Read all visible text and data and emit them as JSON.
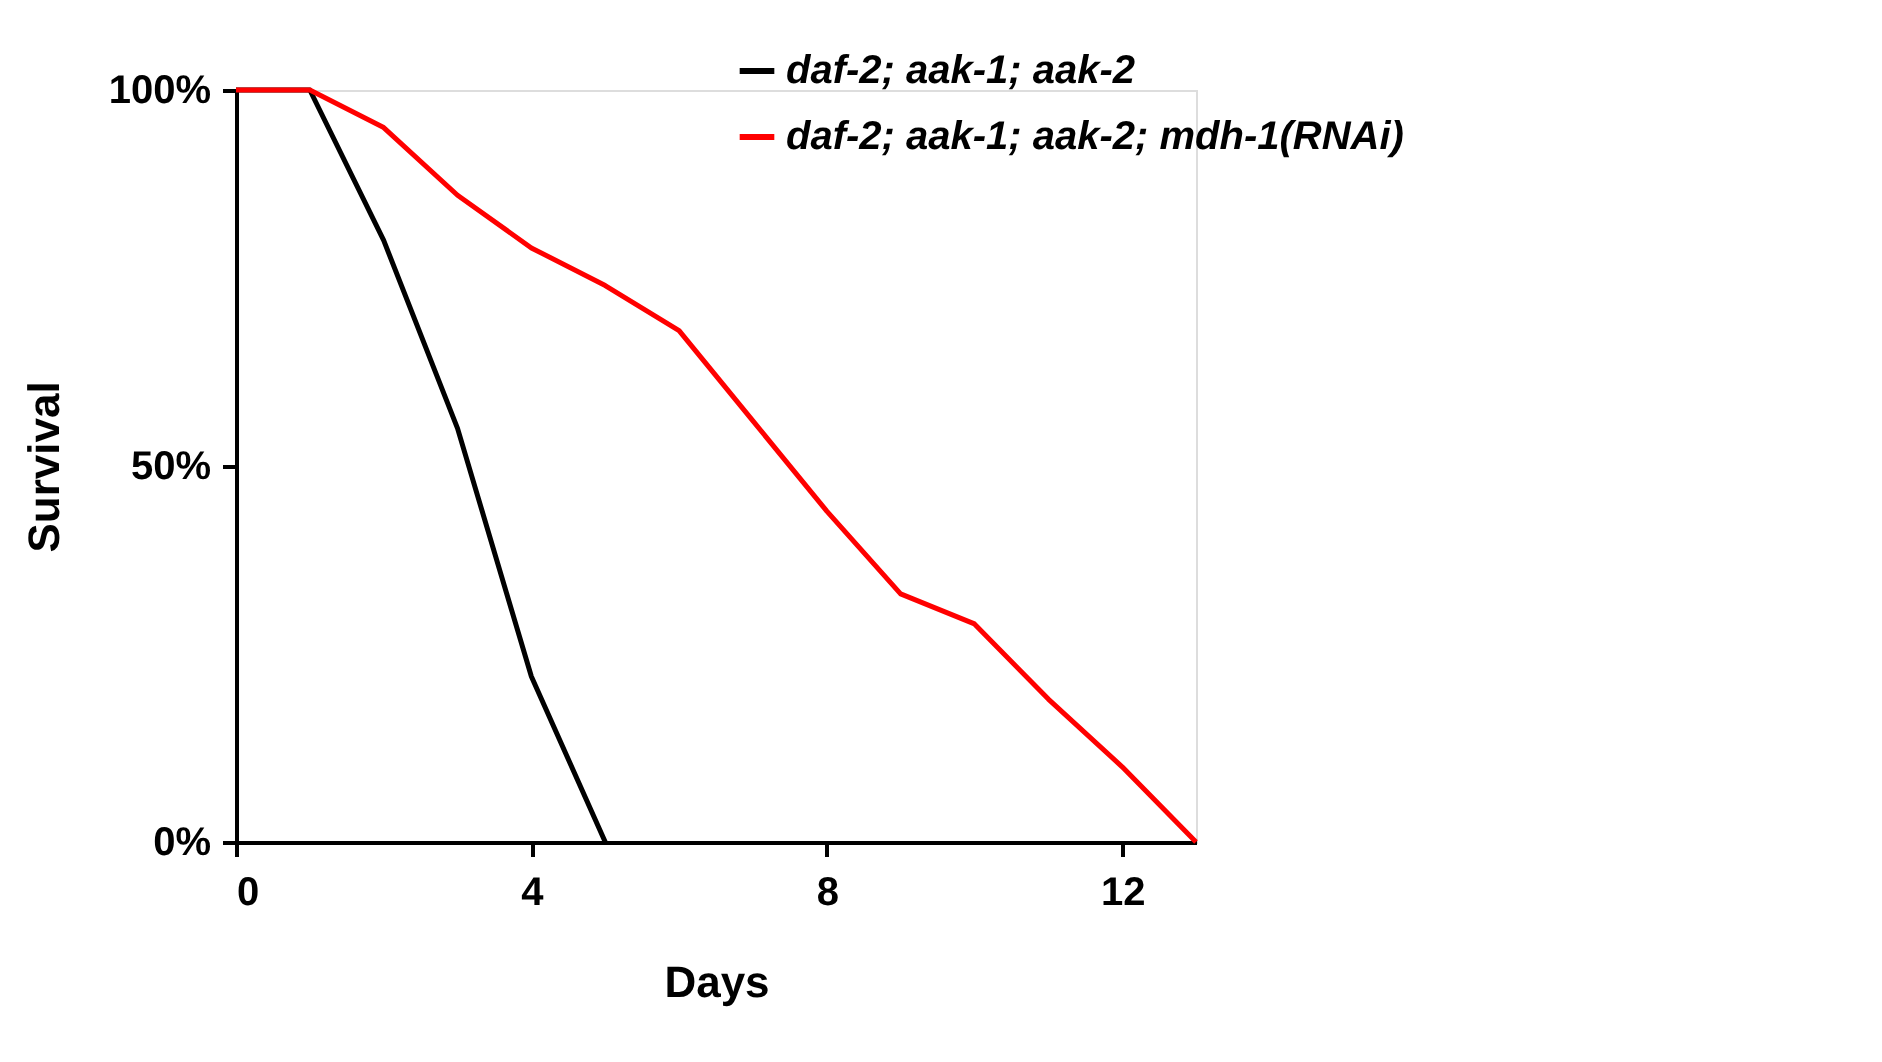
{
  "chart_data": {
    "type": "line",
    "xlabel": "Days",
    "ylabel": "Survival",
    "x": [
      0,
      1,
      2,
      3,
      4,
      5,
      6,
      7,
      8,
      9,
      10,
      11,
      12,
      13
    ],
    "series": [
      {
        "name": "daf-2; aak-1; aak-2",
        "color": "#000000",
        "values": [
          100,
          100,
          80,
          55,
          22,
          0,
          null,
          null,
          null,
          null,
          null,
          null,
          null,
          null
        ]
      },
      {
        "name": "daf-2; aak-1; aak-2; mdh-1(RNAi)",
        "color": "#ff0000",
        "values": [
          100,
          100,
          95,
          86,
          79,
          74,
          68,
          56,
          44,
          33,
          29,
          19,
          10,
          0
        ]
      }
    ],
    "xlim": [
      0,
      13
    ],
    "xticks": [
      0,
      4,
      8,
      12
    ],
    "ylim": [
      0,
      100
    ],
    "yticks": [
      {
        "value": 0,
        "label": "0%"
      },
      {
        "value": 50,
        "label": "50%"
      },
      {
        "value": 100,
        "label": "100%"
      }
    ],
    "grid": false,
    "legend": "top right",
    "marker": "none",
    "line_style": "solid"
  }
}
